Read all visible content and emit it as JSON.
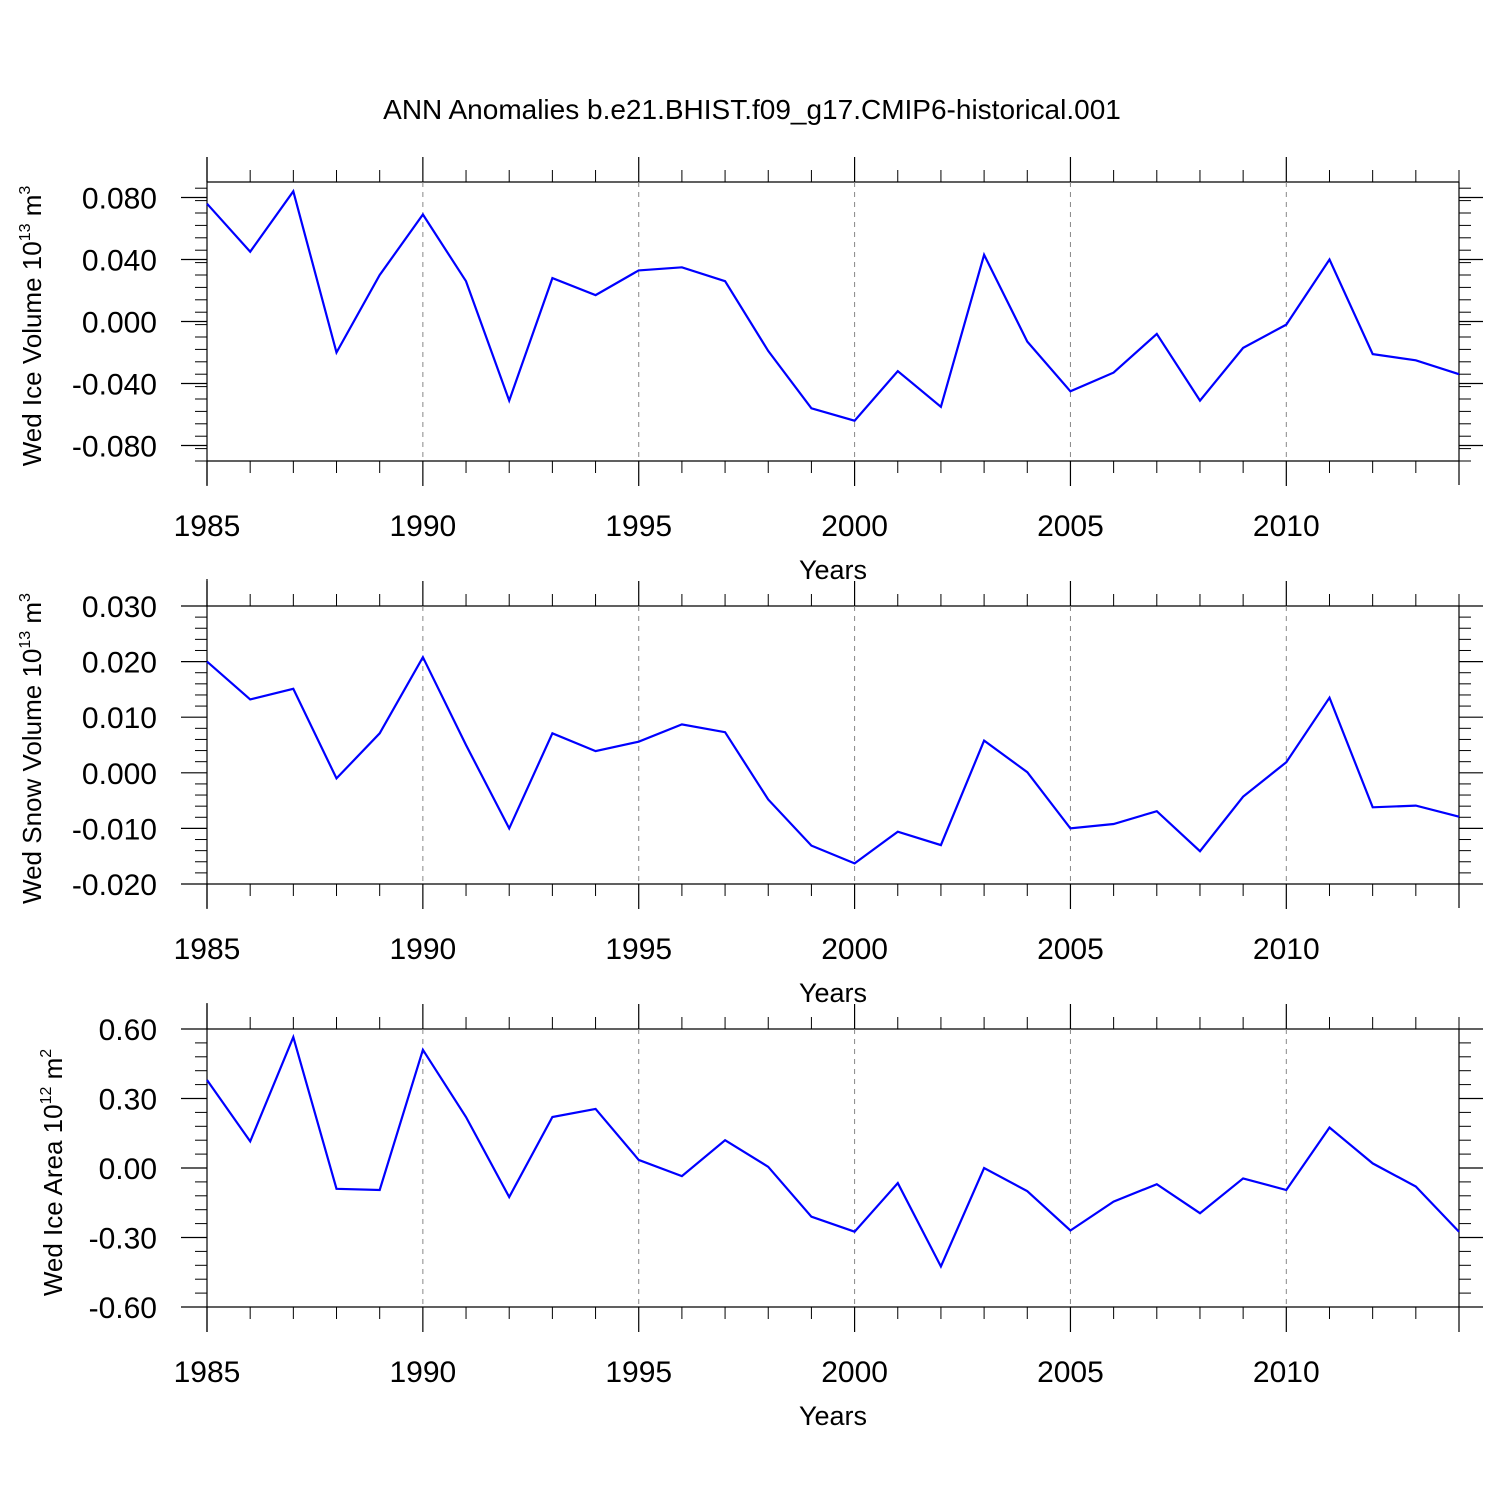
{
  "chart_data": {
    "title": "ANN Anomalies b.e21.BHIST.f09_g17.CMIP6-historical.001",
    "panels": [
      {
        "type": "line",
        "ylabel": {
          "text": "Wed Ice Volume 10",
          "exp": "13",
          "unit": " m",
          "unit_exp": "3"
        },
        "xlabel": "Years",
        "xlim": [
          1985,
          2014
        ],
        "ylim": [
          -0.09,
          0.09
        ],
        "yticks": [
          -0.08,
          -0.04,
          0.0,
          0.04,
          0.08
        ],
        "ytick_labels": [
          "-0.080",
          "-0.040",
          "0.000",
          "0.040",
          "0.080"
        ],
        "xticks": [
          1985,
          1990,
          1995,
          2000,
          2005,
          2010
        ],
        "xtick_labels": [
          "1985",
          "1990",
          "1995",
          "2000",
          "2005",
          "2010"
        ],
        "x": [
          1985,
          1986,
          1987,
          1988,
          1989,
          1990,
          1991,
          1992,
          1993,
          1994,
          1995,
          1996,
          1997,
          1998,
          1999,
          2000,
          2001,
          2002,
          2003,
          2004,
          2005,
          2006,
          2007,
          2008,
          2009,
          2010,
          2011,
          2012,
          2013,
          2014
        ],
        "series": [
          {
            "name": "Wed Ice Volume",
            "color": "#0000ff",
            "values": [
              0.076,
              0.045,
              0.084,
              -0.02,
              0.03,
              0.069,
              0.026,
              -0.051,
              0.028,
              0.017,
              0.033,
              0.035,
              0.026,
              -0.019,
              -0.056,
              -0.064,
              -0.032,
              -0.055,
              0.043,
              -0.013,
              -0.045,
              -0.033,
              -0.008,
              -0.051,
              -0.017,
              -0.002,
              0.04,
              -0.021,
              -0.025,
              -0.034
            ]
          }
        ]
      },
      {
        "type": "line",
        "ylabel": {
          "text": "Wed Snow Volume 10",
          "exp": "13",
          "unit": " m",
          "unit_exp": "3"
        },
        "xlabel": "Years",
        "xlim": [
          1985,
          2014
        ],
        "ylim": [
          -0.02,
          0.03
        ],
        "yticks": [
          -0.02,
          -0.01,
          0.0,
          0.01,
          0.02,
          0.03
        ],
        "ytick_labels": [
          "-0.020",
          "-0.010",
          "0.000",
          "0.010",
          "0.020",
          "0.030"
        ],
        "xticks": [
          1985,
          1990,
          1995,
          2000,
          2005,
          2010
        ],
        "xtick_labels": [
          "1985",
          "1990",
          "1995",
          "2000",
          "2005",
          "2010"
        ],
        "x": [
          1985,
          1986,
          1987,
          1988,
          1989,
          1990,
          1991,
          1992,
          1993,
          1994,
          1995,
          1996,
          1997,
          1998,
          1999,
          2000,
          2001,
          2002,
          2003,
          2004,
          2005,
          2006,
          2007,
          2008,
          2009,
          2010,
          2011,
          2012,
          2013,
          2014
        ],
        "series": [
          {
            "name": "Wed Snow Volume",
            "color": "#0000ff",
            "values": [
              0.02,
              0.0132,
              0.0151,
              -0.001,
              0.0071,
              0.0208,
              0.005,
              -0.01,
              0.0071,
              0.0039,
              0.0056,
              0.0087,
              0.0073,
              -0.0048,
              -0.0131,
              -0.0163,
              -0.0106,
              -0.013,
              0.0058,
              0.0001,
              -0.01,
              -0.0092,
              -0.0069,
              -0.0141,
              -0.0043,
              0.0019,
              0.0135,
              -0.0062,
              -0.0059,
              -0.0079
            ]
          }
        ]
      },
      {
        "type": "line",
        "ylabel": {
          "text": "Wed Ice Area 10",
          "exp": "12",
          "unit": " m",
          "unit_exp": "2"
        },
        "xlabel": "Years",
        "xlim": [
          1985,
          2014
        ],
        "ylim": [
          -0.6,
          0.6
        ],
        "yticks": [
          -0.6,
          -0.3,
          0.0,
          0.3,
          0.6
        ],
        "ytick_labels": [
          "-0.60",
          "-0.30",
          "0.00",
          "0.30",
          "0.60"
        ],
        "xticks": [
          1985,
          1990,
          1995,
          2000,
          2005,
          2010
        ],
        "xtick_labels": [
          "1985",
          "1990",
          "1995",
          "2000",
          "2005",
          "2010"
        ],
        "x": [
          1985,
          1986,
          1987,
          1988,
          1989,
          1990,
          1991,
          1992,
          1993,
          1994,
          1995,
          1996,
          1997,
          1998,
          1999,
          2000,
          2001,
          2002,
          2003,
          2004,
          2005,
          2006,
          2007,
          2008,
          2009,
          2010,
          2011,
          2012,
          2013,
          2014
        ],
        "series": [
          {
            "name": "Wed Ice Area",
            "color": "#0000ff",
            "values": [
              0.38,
              0.115,
              0.565,
              -0.09,
              -0.095,
              0.51,
              0.22,
              -0.125,
              0.22,
              0.255,
              0.035,
              -0.035,
              0.12,
              0.005,
              -0.21,
              -0.275,
              -0.065,
              -0.425,
              0.0,
              -0.1,
              -0.27,
              -0.145,
              -0.07,
              -0.195,
              -0.045,
              -0.095,
              0.175,
              0.02,
              -0.08,
              -0.275
            ]
          }
        ]
      }
    ]
  }
}
